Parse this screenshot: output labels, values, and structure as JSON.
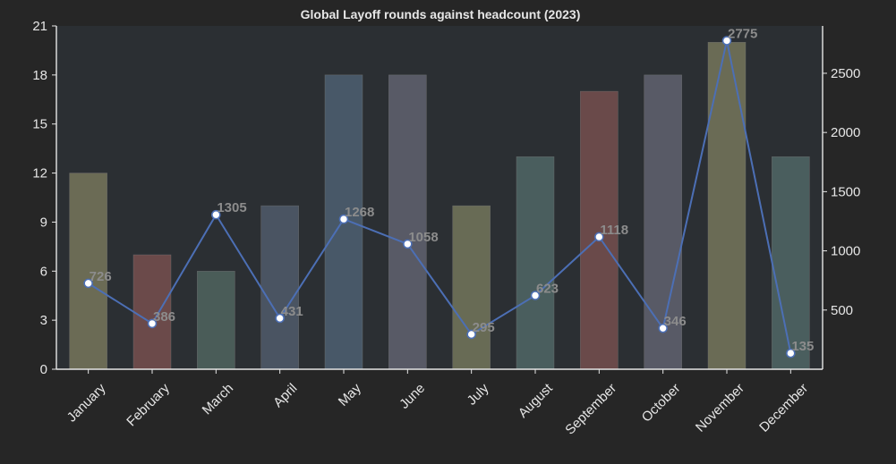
{
  "chart_data": {
    "type": "bar",
    "title": "Global Layoff rounds against headcount (2023)",
    "categories": [
      "January",
      "February",
      "March",
      "April",
      "May",
      "June",
      "July",
      "August",
      "September",
      "October",
      "November",
      "December"
    ],
    "series": [
      {
        "type": "bar",
        "axis": "left",
        "values": [
          12,
          7,
          6,
          10,
          18,
          18,
          10,
          13,
          17,
          18,
          20,
          13
        ],
        "colors": [
          "#6b6b55",
          "#6b4a4a",
          "#4a5c58",
          "#4a5462",
          "#485868",
          "#585a66",
          "#686b55",
          "#4a5e5e",
          "#6a4a4a",
          "#585a66",
          "#6a6b55",
          "#4a5e5e"
        ]
      },
      {
        "type": "line",
        "axis": "right",
        "values": [
          726,
          386,
          1305,
          431,
          1268,
          1058,
          295,
          623,
          1118,
          346,
          2775,
          135
        ],
        "color": "#4c6fb5"
      }
    ],
    "left_axis": {
      "ylim": [
        0,
        21
      ],
      "ticks": [
        0,
        3,
        6,
        9,
        12,
        15,
        18,
        21
      ]
    },
    "right_axis": {
      "ylim": [
        0,
        2900
      ],
      "ticks": [
        500,
        1000,
        1500,
        2000,
        2500
      ]
    },
    "grid": false,
    "background": "#2b2f33",
    "figure_background": "#262626"
  }
}
